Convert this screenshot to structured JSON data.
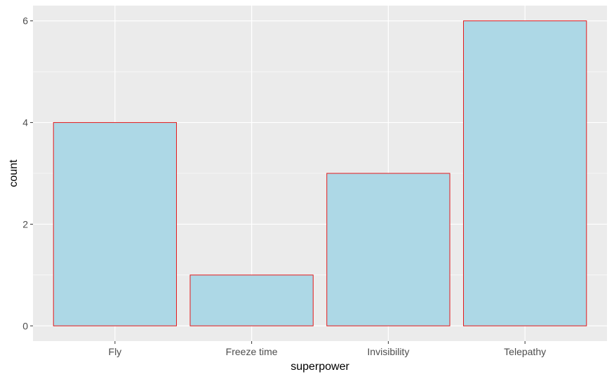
{
  "chart_data": {
    "type": "bar",
    "categories": [
      "Fly",
      "Freeze time",
      "Invisibility",
      "Telepathy"
    ],
    "values": [
      4,
      1,
      3,
      6
    ],
    "title": "",
    "xlabel": "superpower",
    "ylabel": "count",
    "ylim": [
      -0.3,
      6.3
    ],
    "yticks": [
      0,
      2,
      4,
      6
    ],
    "grid": true,
    "legend": "none",
    "colors": {
      "bar_fill": "#add8e6",
      "bar_stroke": "#e31a1c",
      "panel_background": "#ebebeb",
      "grid_major": "#ffffff",
      "tick_label": "#4d4d4d",
      "axis_title": "#000000"
    }
  }
}
